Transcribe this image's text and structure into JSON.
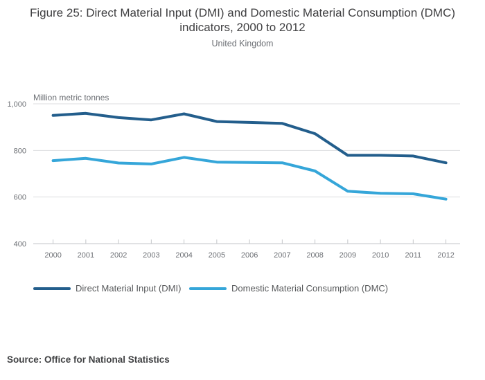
{
  "header": {
    "title": "Figure 25: Direct Material Input (DMI) and Domestic Material Consumption (DMC) indicators, 2000 to 2012",
    "subtitle": "United Kingdom"
  },
  "chart_data": {
    "type": "line",
    "title": "Figure 25: Direct Material Input (DMI) and Domestic Material Consumption (DMC) indicators, 2000 to 2012",
    "subtitle": "United Kingdom",
    "unit_label": "Million metric tonnes",
    "x": [
      2000,
      2001,
      2002,
      2003,
      2004,
      2005,
      2006,
      2007,
      2008,
      2009,
      2010,
      2011,
      2012
    ],
    "series": [
      {
        "name": "Direct Material Input (DMI)",
        "color": "#235e8c",
        "values": [
          950,
          959,
          941,
          931,
          957,
          924,
          920,
          916,
          872,
          779,
          779,
          776,
          747
        ]
      },
      {
        "name": "Domestic Material Consumption (DMC)",
        "color": "#35a6d9",
        "values": [
          756,
          766,
          746,
          742,
          770,
          750,
          748,
          747,
          712,
          625,
          616,
          614,
          591
        ]
      }
    ],
    "ylim": [
      400,
      1000
    ],
    "yticks": [
      400,
      600,
      800,
      1000
    ],
    "ytick_labels": [
      "400",
      "600",
      "800",
      "1,000"
    ],
    "grid": true,
    "legend_position": "bottom"
  },
  "source": "Source: Office for National Statistics",
  "colors": {
    "grid": "#dcdddf",
    "axis": "#c3c5c8",
    "tick_mark": "#c3c5c8",
    "title_text": "#404042",
    "muted_text": "#6d7075",
    "legend_text": "#56585a"
  }
}
